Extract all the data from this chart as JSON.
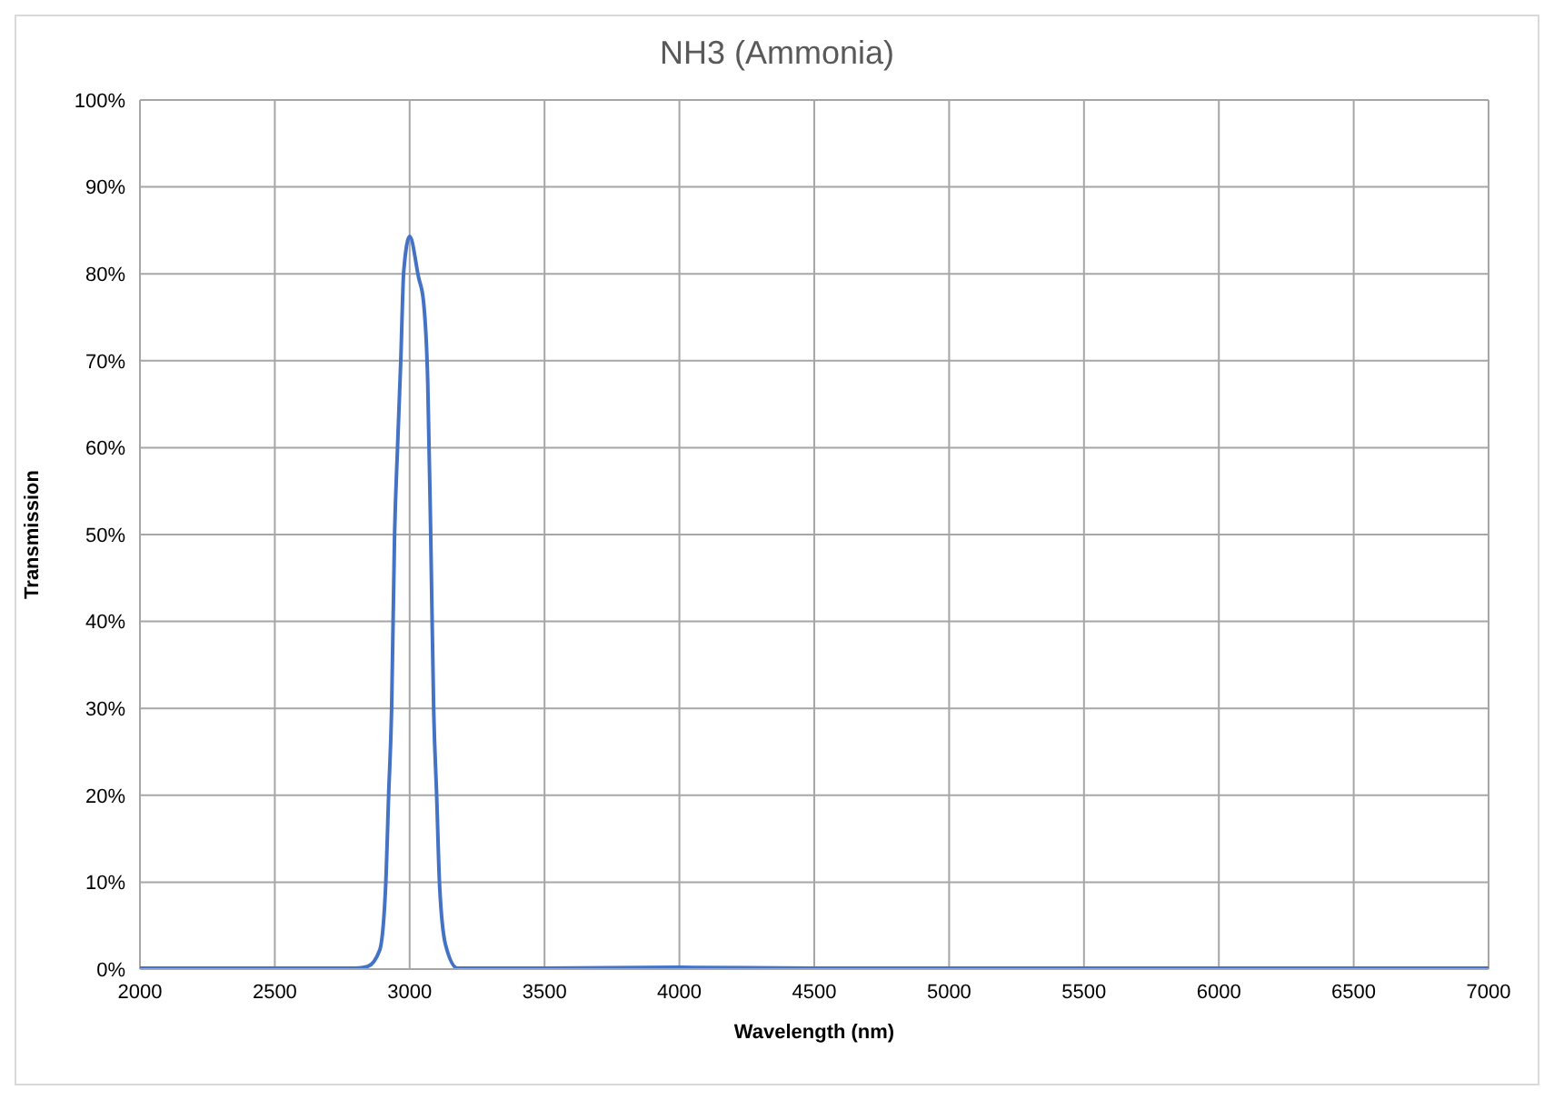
{
  "chart_data": {
    "type": "line",
    "title": "NH3 (Ammonia)",
    "xlabel": "Wavelength (nm)",
    "ylabel": "Transmission",
    "x": [
      2000,
      2500,
      2800,
      2844,
      2889,
      2911,
      2922,
      2933,
      2944,
      2955,
      2967,
      2978,
      3000,
      3033,
      3051,
      3067,
      3078,
      3089,
      3100,
      3111,
      3133,
      3178,
      3250,
      3500,
      4000,
      4500,
      5000,
      5500,
      6000,
      6500,
      7000
    ],
    "series": [
      {
        "color": "#4472c4",
        "values": [
          0.1,
          0.1,
          0.1,
          0.3,
          2.2,
          9.6,
          20,
          29.8,
          50,
          60,
          70,
          80.3,
          84.3,
          79.6,
          76.9,
          67.5,
          50,
          29.8,
          20,
          9.6,
          2.8,
          0.1,
          0.1,
          0.1,
          0.2,
          0.1,
          0.1,
          0.1,
          0.1,
          0.1,
          0.1
        ]
      }
    ],
    "xlim": [
      2000,
      7000
    ],
    "xticks": [
      2000,
      2500,
      3000,
      3500,
      4000,
      4500,
      5000,
      5500,
      6000,
      6500,
      7000
    ],
    "ylim": [
      0,
      100
    ],
    "yticks": [
      {
        "value": 0,
        "label": "0%"
      },
      {
        "value": 10,
        "label": "10%"
      },
      {
        "value": 20,
        "label": "20%"
      },
      {
        "value": 30,
        "label": "30%"
      },
      {
        "value": 40,
        "label": "40%"
      },
      {
        "value": 50,
        "label": "50%"
      },
      {
        "value": 60,
        "label": "60%"
      },
      {
        "value": 70,
        "label": "70%"
      },
      {
        "value": 80,
        "label": "80%"
      },
      {
        "value": 90,
        "label": "90%"
      },
      {
        "value": 100,
        "label": "100%"
      }
    ],
    "grid": true,
    "marker": "none",
    "line_style": "solid"
  }
}
